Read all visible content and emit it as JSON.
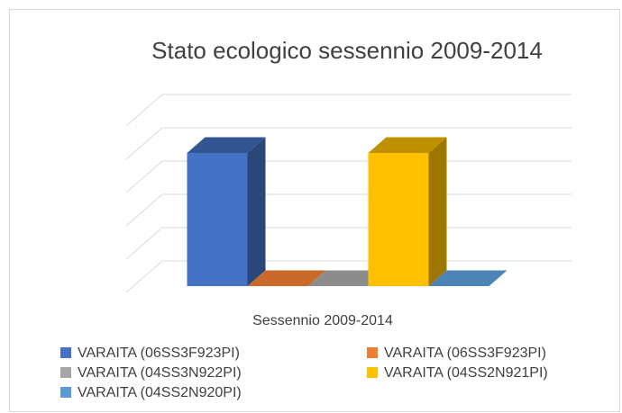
{
  "chart_data": {
    "type": "bar3d",
    "title": "Stato ecologico sessennio 2009-2014",
    "categories": [
      "Sessennio 2009-2014"
    ],
    "series": [
      {
        "name": "VARAITA (06SS3F923PI)",
        "color": "#4472c4",
        "values": [
          4
        ]
      },
      {
        "name": "VARAITA (06SS3F923PI)",
        "color": "#ed7d31",
        "values": [
          0
        ]
      },
      {
        "name": "VARAITA (04SS3N922PI)",
        "color": "#a5a5a5",
        "values": [
          0
        ]
      },
      {
        "name": "VARAITA (04SS2N921PI)",
        "color": "#ffc000",
        "values": [
          4
        ]
      },
      {
        "name": "VARAITA (04SS2N920PI)",
        "color": "#5b9bd5",
        "values": [
          0
        ]
      }
    ],
    "ylim": [
      0,
      5
    ],
    "yticks": [
      0,
      1,
      2,
      3,
      4,
      5
    ],
    "grid": true,
    "legend": "bottom"
  }
}
